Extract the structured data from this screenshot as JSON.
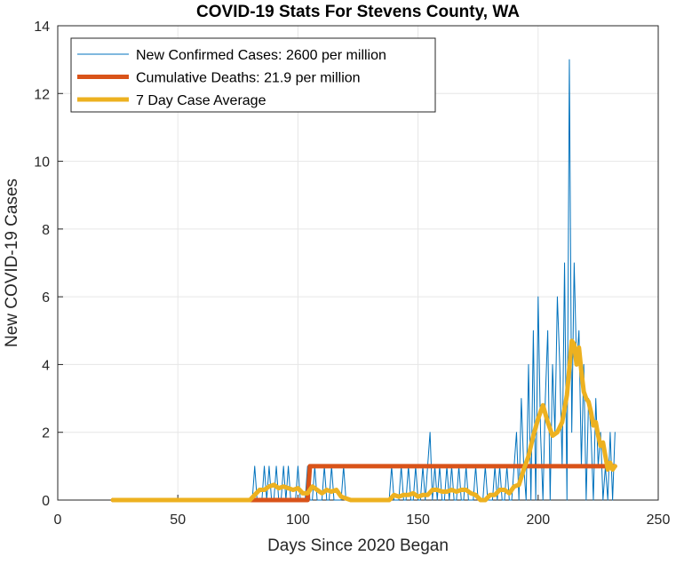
{
  "chart_data": {
    "type": "line",
    "title": "COVID-19 Stats For Stevens County, WA",
    "xlabel": "Days Since 2020 Began",
    "ylabel": "New COVID-19 Cases",
    "xlim": [
      0,
      250
    ],
    "ylim": [
      0,
      14
    ],
    "xticks": [
      0,
      50,
      100,
      150,
      200,
      250
    ],
    "yticks": [
      0,
      2,
      4,
      6,
      8,
      10,
      12,
      14
    ],
    "grid": true,
    "legend_position": "top-left",
    "series": [
      {
        "name": "New Confirmed Cases: 2600 per million",
        "color": "#0072BD",
        "width": "thin",
        "x": [
          23,
          80,
          81,
          82,
          83,
          84,
          85,
          86,
          87,
          88,
          89,
          90,
          91,
          92,
          93,
          94,
          95,
          96,
          97,
          98,
          99,
          100,
          101,
          102,
          103,
          104,
          105,
          106,
          107,
          108,
          109,
          110,
          111,
          112,
          113,
          114,
          115,
          116,
          117,
          118,
          119,
          120,
          138,
          139,
          140,
          141,
          142,
          143,
          144,
          145,
          146,
          147,
          148,
          149,
          150,
          151,
          152,
          153,
          154,
          155,
          156,
          157,
          158,
          159,
          160,
          161,
          162,
          163,
          164,
          165,
          166,
          167,
          168,
          169,
          170,
          171,
          172,
          173,
          174,
          175,
          176,
          177,
          178,
          179,
          180,
          181,
          182,
          183,
          184,
          185,
          186,
          187,
          188,
          189,
          190,
          191,
          192,
          193,
          194,
          195,
          196,
          197,
          198,
          199,
          200,
          201,
          202,
          203,
          204,
          205,
          206,
          207,
          208,
          209,
          210,
          211,
          212,
          213,
          214,
          215,
          216,
          217,
          218,
          219,
          220,
          221,
          222,
          223,
          224,
          225,
          226,
          227,
          228,
          229,
          230,
          231,
          232
        ],
        "values": [
          0,
          0,
          0,
          1,
          0,
          0,
          0,
          1,
          0,
          1,
          0,
          0,
          1,
          0,
          0,
          1,
          0,
          1,
          0,
          0,
          0,
          1,
          0,
          0,
          0,
          1,
          0,
          0,
          1,
          0,
          0,
          0,
          1,
          0,
          0,
          1,
          0,
          0,
          0,
          0,
          1,
          0,
          0,
          1,
          0,
          0,
          0,
          1,
          0,
          0,
          1,
          0,
          0,
          1,
          0,
          0,
          1,
          0,
          1,
          2,
          0,
          1,
          0,
          1,
          0,
          0,
          1,
          0,
          1,
          0,
          0,
          1,
          0,
          0,
          1,
          0,
          0,
          0,
          1,
          0,
          0,
          0,
          1,
          0,
          0,
          0,
          1,
          0,
          1,
          0,
          0,
          1,
          0,
          0,
          1,
          2,
          0,
          3,
          1,
          0,
          4,
          0,
          5,
          0,
          6,
          2,
          0,
          3,
          5,
          0,
          4,
          2,
          6,
          4,
          1,
          7,
          0,
          13,
          2,
          7,
          4,
          5,
          1,
          4,
          0,
          3,
          2,
          0,
          3,
          1,
          2,
          0,
          1,
          0,
          2,
          0,
          2
        ]
      },
      {
        "name": "Cumulative Deaths: 21.9 per million",
        "color": "#D95319",
        "width": "thick",
        "x": [
          23,
          104,
          105,
          232
        ],
        "values": [
          0,
          0,
          1,
          1
        ]
      },
      {
        "name": "7 Day Case Average",
        "color": "#EDB120",
        "width": "thick",
        "x": [
          23,
          80,
          82,
          84,
          86,
          88,
          90,
          92,
          94,
          96,
          98,
          100,
          102,
          104,
          106,
          108,
          110,
          112,
          114,
          116,
          118,
          120,
          122,
          130,
          138,
          140,
          142,
          144,
          146,
          148,
          150,
          152,
          154,
          156,
          158,
          160,
          162,
          164,
          166,
          168,
          170,
          172,
          174,
          176,
          178,
          180,
          182,
          184,
          186,
          188,
          190,
          192,
          194,
          196,
          198,
          200,
          202,
          204,
          206,
          208,
          210,
          212,
          213,
          214,
          215,
          216,
          217,
          218,
          219,
          220,
          221,
          222,
          223,
          224,
          225,
          226,
          227,
          228,
          229,
          230,
          231,
          232
        ],
        "values": [
          0,
          0,
          0.15,
          0.3,
          0.3,
          0.4,
          0.45,
          0.35,
          0.4,
          0.35,
          0.3,
          0.35,
          0.2,
          0.2,
          0.4,
          0.3,
          0.2,
          0.3,
          0.25,
          0.3,
          0.1,
          0.05,
          0,
          0,
          0,
          0.15,
          0.1,
          0.15,
          0.15,
          0.2,
          0.1,
          0.15,
          0.15,
          0.3,
          0.3,
          0.25,
          0.25,
          0.3,
          0.25,
          0.3,
          0.3,
          0.2,
          0.15,
          0,
          0,
          0.15,
          0.15,
          0.3,
          0.3,
          0.2,
          0.4,
          0.45,
          0.9,
          1.3,
          1.9,
          2.4,
          2.8,
          2.3,
          1.9,
          2.0,
          2.3,
          3.1,
          3.9,
          4.7,
          4.6,
          4.0,
          4.5,
          3.8,
          3.2,
          3.0,
          2.9,
          2.6,
          2.2,
          2.3,
          1.9,
          1.6,
          1.7,
          1.3,
          0.9,
          1.1,
          0.9,
          1.0
        ]
      }
    ]
  }
}
